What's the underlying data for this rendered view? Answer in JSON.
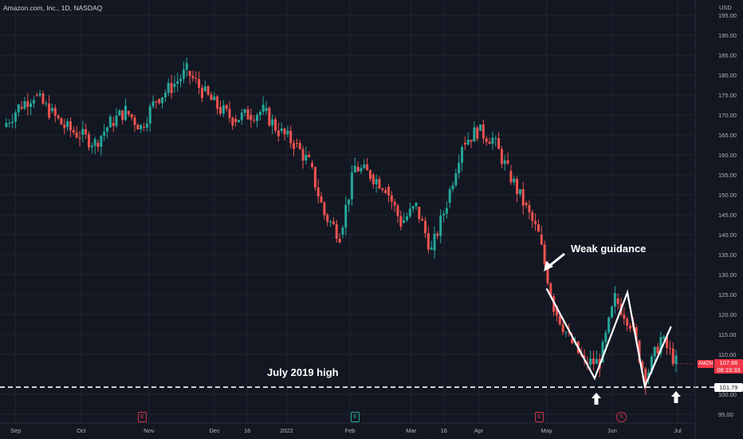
{
  "header": {
    "symbol_title": "Amazon.com, Inc., 1D, NASDAQ",
    "currency": "USD"
  },
  "price_axis": {
    "labels": [
      "195.00",
      "190.00",
      "185.00",
      "180.00",
      "175.00",
      "170.00",
      "165.00",
      "160.00",
      "155.00",
      "150.00",
      "145.00",
      "140.00",
      "135.00",
      "130.00",
      "125.00",
      "120.00",
      "115.00",
      "110.00",
      "100.00",
      "95.00"
    ]
  },
  "time_axis": {
    "labels": [
      "Sep",
      "Oct",
      "Nov",
      "Dec",
      "16",
      "2022",
      "Feb",
      "Mar",
      "16",
      "Apr",
      "May",
      "Jun",
      "Jul"
    ]
  },
  "last_price": {
    "ticker": "AMZN",
    "price": "107.66",
    "countdown": "06:19:33"
  },
  "support_level": {
    "value": "101.79",
    "label": "July 2019 high"
  },
  "annotations": {
    "weak_guidance": "Weak guidance"
  },
  "event_markers": {
    "earnings": "E",
    "dividend": "S"
  },
  "colors": {
    "background": "#131722",
    "up": "#26a69a",
    "down": "#ef5350",
    "grid": "#1f2430",
    "annotation": "#ffffff"
  },
  "chart_data": {
    "type": "candlestick",
    "title": "Amazon.com, Inc., 1D, NASDAQ",
    "ylabel": "USD",
    "ylim": [
      94,
      197
    ],
    "x": [
      "2021-08-27",
      "2021-09-03",
      "2021-09-10",
      "2021-09-17",
      "2021-09-24",
      "2021-10-01",
      "2021-10-08",
      "2021-10-15",
      "2021-10-22",
      "2021-10-29",
      "2021-11-05",
      "2021-11-12",
      "2021-11-19",
      "2021-11-26",
      "2021-12-03",
      "2021-12-10",
      "2021-12-17",
      "2021-12-24",
      "2021-12-31",
      "2022-01-07",
      "2022-01-14",
      "2022-01-21",
      "2022-01-28",
      "2022-02-04",
      "2022-02-11",
      "2022-02-18",
      "2022-02-25",
      "2022-03-04",
      "2022-03-11",
      "2022-03-18",
      "2022-03-25",
      "2022-04-01",
      "2022-04-08",
      "2022-04-15",
      "2022-04-22",
      "2022-04-29",
      "2022-05-06",
      "2022-05-13",
      "2022-05-20",
      "2022-05-27",
      "2022-06-03",
      "2022-06-10",
      "2022-06-17",
      "2022-06-24",
      "2022-07-01"
    ],
    "close": [
      167,
      172,
      175,
      171,
      167,
      165,
      163,
      168,
      171,
      167,
      174,
      177,
      181,
      176,
      172,
      169,
      170,
      171,
      166,
      163,
      158,
      145,
      140,
      157,
      155,
      152,
      143,
      147,
      136,
      148,
      163,
      166,
      164,
      156,
      148,
      140,
      122,
      114,
      108,
      108,
      124,
      118,
      104,
      114,
      108
    ],
    "support_value": 101.79,
    "support_label": "July 2019 high",
    "annotation": "Weak guidance",
    "pattern_line": [
      {
        "x": "2022-05-02",
        "y": 126.5
      },
      {
        "x": "2022-05-24",
        "y": 104.0
      },
      {
        "x": "2022-06-08",
        "y": 125.5
      },
      {
        "x": "2022-06-16",
        "y": 102.0
      },
      {
        "x": "2022-06-28",
        "y": 117.0
      }
    ],
    "last_value": 107.66,
    "grid": true
  }
}
